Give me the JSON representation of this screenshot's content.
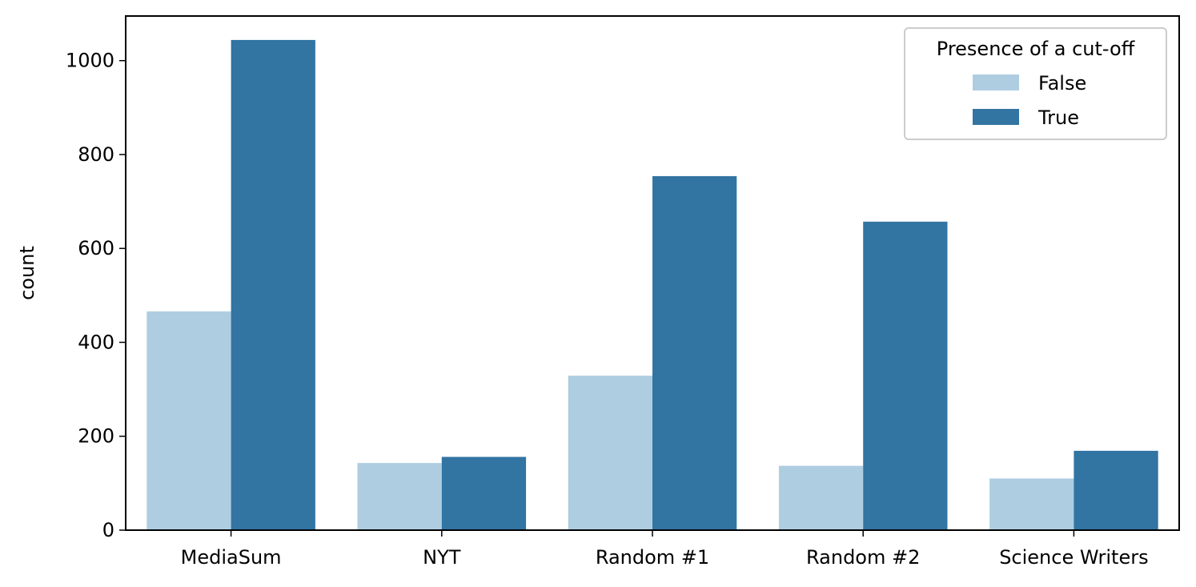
{
  "chart_data": {
    "type": "bar",
    "title": "",
    "xlabel": "",
    "ylabel": "count",
    "ylim": [
      0,
      1095
    ],
    "yticks": [
      0,
      200,
      400,
      600,
      800,
      1000
    ],
    "categories": [
      "MediaSum",
      "NYT",
      "Random #1",
      "Random #2",
      "Science Writers"
    ],
    "series": [
      {
        "name": "False",
        "color": "#aecde1",
        "values": [
          466,
          143,
          329,
          137,
          110
        ]
      },
      {
        "name": "True",
        "color": "#3274a2",
        "values": [
          1044,
          156,
          754,
          657,
          169
        ]
      }
    ],
    "legend": {
      "title": "Presence of a cut-off",
      "placement": "top-right"
    },
    "grid": false
  }
}
